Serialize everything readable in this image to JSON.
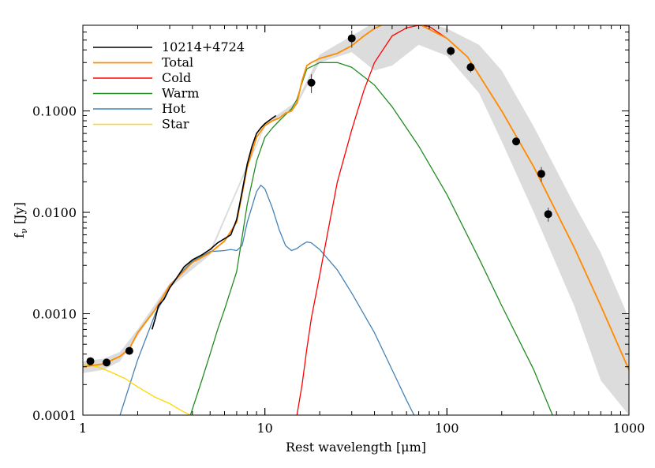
{
  "chart_data": {
    "type": "line",
    "title": "",
    "xlabel": "Rest wavelength [μm]",
    "ylabel_main": "f",
    "ylabel_sub": "ν",
    "ylabel_unit": " [Jy]",
    "xscale": "log",
    "yscale": "log",
    "xlim": [
      1,
      1000
    ],
    "ylim": [
      0.0001,
      0.7
    ],
    "grid": false,
    "legend_position": "top-left",
    "x_ticks": [
      {
        "value": 1,
        "label": "1"
      },
      {
        "value": 10,
        "label": "10"
      },
      {
        "value": 100,
        "label": "100"
      },
      {
        "value": 1000,
        "label": "1000"
      }
    ],
    "y_ticks": [
      {
        "value": 0.0001,
        "label": "0.0001"
      },
      {
        "value": 0.001,
        "label": "0.0010"
      },
      {
        "value": 0.01,
        "label": "0.0100"
      },
      {
        "value": 0.1,
        "label": "0.1000"
      }
    ],
    "series": [
      {
        "name": "10214+4724",
        "color": "#000000",
        "points": [
          [
            2.4,
            0.0007
          ],
          [
            2.5,
            0.0009
          ],
          [
            2.6,
            0.0012
          ],
          [
            2.8,
            0.0014
          ],
          [
            3.0,
            0.0018
          ],
          [
            3.3,
            0.0023
          ],
          [
            3.6,
            0.0029
          ],
          [
            4.0,
            0.0034
          ],
          [
            4.5,
            0.0038
          ],
          [
            5.0,
            0.0043
          ],
          [
            5.5,
            0.005
          ],
          [
            6.0,
            0.0055
          ],
          [
            6.5,
            0.006
          ],
          [
            7.0,
            0.0085
          ],
          [
            7.5,
            0.016
          ],
          [
            8.0,
            0.03
          ],
          [
            8.5,
            0.045
          ],
          [
            9.0,
            0.06
          ],
          [
            9.5,
            0.068
          ],
          [
            10.0,
            0.075
          ],
          [
            10.5,
            0.08
          ],
          [
            11.0,
            0.085
          ],
          [
            11.5,
            0.09
          ]
        ]
      },
      {
        "name": "Total",
        "color": "#ff8c00",
        "points": [
          [
            1.0,
            0.0003
          ],
          [
            1.3,
            0.00032
          ],
          [
            1.6,
            0.00038
          ],
          [
            1.8,
            0.00045
          ],
          [
            2.0,
            0.00065
          ],
          [
            2.5,
            0.0011
          ],
          [
            3.0,
            0.0019
          ],
          [
            4.0,
            0.0032
          ],
          [
            5.0,
            0.004
          ],
          [
            6.0,
            0.0052
          ],
          [
            7.0,
            0.008
          ],
          [
            8.0,
            0.028
          ],
          [
            9.0,
            0.055
          ],
          [
            10.0,
            0.072
          ],
          [
            11.0,
            0.08
          ],
          [
            12.0,
            0.085
          ],
          [
            13.0,
            0.095
          ],
          [
            14.0,
            0.1
          ],
          [
            15.0,
            0.12
          ],
          [
            16.0,
            0.2
          ],
          [
            17.0,
            0.28
          ],
          [
            18.0,
            0.3
          ],
          [
            20.0,
            0.33
          ],
          [
            25.0,
            0.37
          ],
          [
            30.0,
            0.44
          ],
          [
            35.0,
            0.55
          ],
          [
            40.0,
            0.65
          ],
          [
            45.0,
            0.72
          ],
          [
            50.0,
            0.74
          ],
          [
            70.0,
            0.72
          ],
          [
            100.0,
            0.52
          ],
          [
            130.0,
            0.34
          ],
          [
            200.0,
            0.1
          ],
          [
            300.0,
            0.028
          ],
          [
            500.0,
            0.0045
          ],
          [
            700.0,
            0.0012
          ],
          [
            1000.0,
            0.00028
          ]
        ]
      },
      {
        "name": "Cold",
        "color": "#ff0000",
        "points": [
          [
            15.0,
            0.0001
          ],
          [
            16.0,
            0.0002
          ],
          [
            17.0,
            0.00045
          ],
          [
            18.0,
            0.0009
          ],
          [
            20.0,
            0.0024
          ],
          [
            22.0,
            0.006
          ],
          [
            25.0,
            0.02
          ],
          [
            30.0,
            0.065
          ],
          [
            35.0,
            0.16
          ],
          [
            40.0,
            0.3
          ],
          [
            50.0,
            0.55
          ],
          [
            60.0,
            0.66
          ],
          [
            70.0,
            0.7
          ],
          [
            80.0,
            0.68
          ],
          [
            100.0,
            0.52
          ],
          [
            130.0,
            0.34
          ],
          [
            200.0,
            0.1
          ],
          [
            300.0,
            0.028
          ],
          [
            500.0,
            0.0045
          ],
          [
            700.0,
            0.0012
          ],
          [
            1000.0,
            0.00028
          ]
        ]
      },
      {
        "name": "Warm",
        "color": "#228b22",
        "points": [
          [
            3.9,
            0.0001
          ],
          [
            4.5,
            0.00022
          ],
          [
            5.0,
            0.0004
          ],
          [
            5.5,
            0.0007
          ],
          [
            6.0,
            0.0011
          ],
          [
            7.0,
            0.0026
          ],
          [
            8.0,
            0.012
          ],
          [
            9.0,
            0.032
          ],
          [
            10.0,
            0.055
          ],
          [
            11.0,
            0.068
          ],
          [
            12.0,
            0.08
          ],
          [
            13.0,
            0.092
          ],
          [
            14.0,
            0.105
          ],
          [
            15.0,
            0.13
          ],
          [
            16.0,
            0.19
          ],
          [
            17.0,
            0.26
          ],
          [
            20.0,
            0.3
          ],
          [
            25.0,
            0.3
          ],
          [
            30.0,
            0.27
          ],
          [
            40.0,
            0.18
          ],
          [
            50.0,
            0.11
          ],
          [
            70.0,
            0.045
          ],
          [
            100.0,
            0.015
          ],
          [
            150.0,
            0.0035
          ],
          [
            200.0,
            0.0012
          ],
          [
            300.0,
            0.00028
          ],
          [
            380.0,
            0.0001
          ]
        ]
      },
      {
        "name": "Hot",
        "color": "#4682b4",
        "points": [
          [
            1.6,
            0.0001
          ],
          [
            2.0,
            0.00035
          ],
          [
            2.5,
            0.001
          ],
          [
            3.0,
            0.0018
          ],
          [
            3.5,
            0.0026
          ],
          [
            4.0,
            0.0033
          ],
          [
            5.0,
            0.0041
          ],
          [
            6.0,
            0.0042
          ],
          [
            6.5,
            0.0043
          ],
          [
            7.0,
            0.0042
          ],
          [
            7.5,
            0.0047
          ],
          [
            8.0,
            0.008
          ],
          [
            9.0,
            0.016
          ],
          [
            9.5,
            0.0185
          ],
          [
            10.0,
            0.017
          ],
          [
            11.0,
            0.011
          ],
          [
            12.0,
            0.0067
          ],
          [
            13.0,
            0.0047
          ],
          [
            14.0,
            0.0042
          ],
          [
            15.0,
            0.0044
          ],
          [
            16.0,
            0.0048
          ],
          [
            17.0,
            0.0051
          ],
          [
            18.0,
            0.005
          ],
          [
            20.0,
            0.0043
          ],
          [
            25.0,
            0.0027
          ],
          [
            30.0,
            0.0016
          ],
          [
            40.0,
            0.00065
          ],
          [
            50.0,
            0.00028
          ],
          [
            60.0,
            0.00014
          ],
          [
            66.0,
            0.0001
          ]
        ]
      },
      {
        "name": "Star",
        "color": "#ffd700",
        "points": [
          [
            1.0,
            0.00032
          ],
          [
            1.2,
            0.0003
          ],
          [
            1.4,
            0.00027
          ],
          [
            1.7,
            0.00023
          ],
          [
            2.0,
            0.00019
          ],
          [
            2.5,
            0.00015
          ],
          [
            3.0,
            0.00013
          ],
          [
            3.5,
            0.00011
          ],
          [
            3.9,
            0.0001
          ]
        ]
      }
    ],
    "photometry": {
      "name": "photometry",
      "color": "#000000",
      "points": [
        {
          "x": 1.1,
          "y": 0.00034,
          "err": 2e-05
        },
        {
          "x": 1.35,
          "y": 0.00033,
          "err": 2e-05
        },
        {
          "x": 1.8,
          "y": 0.00043,
          "err": 3e-05
        },
        {
          "x": 18.0,
          "y": 0.19,
          "err": 0.04
        },
        {
          "x": 30.0,
          "y": 0.52,
          "err": 0.1
        },
        {
          "x": 105.0,
          "y": 0.39,
          "err": 0.04
        },
        {
          "x": 135.0,
          "y": 0.27,
          "err": 0.03
        },
        {
          "x": 240.0,
          "y": 0.05,
          "err": 0.004
        },
        {
          "x": 330.0,
          "y": 0.024,
          "err": 0.004
        },
        {
          "x": 360.0,
          "y": 0.0096,
          "err": 0.0015
        }
      ]
    },
    "uncertainty_band": {
      "color": "#dcdcdc",
      "points": [
        {
          "x": 1.0,
          "lo": 0.00026,
          "hi": 0.00034
        },
        {
          "x": 1.3,
          "lo": 0.00028,
          "hi": 0.00036
        },
        {
          "x": 1.6,
          "lo": 0.00034,
          "hi": 0.00042
        },
        {
          "x": 2.0,
          "lo": 0.0006,
          "hi": 0.0007
        },
        {
          "x": 3.0,
          "lo": 0.0018,
          "hi": 0.002
        },
        {
          "x": 5.0,
          "lo": 0.0038,
          "hi": 0.0042
        },
        {
          "x": 10.0,
          "lo": 0.07,
          "hi": 0.075
        },
        {
          "x": 15.0,
          "lo": 0.115,
          "hi": 0.125
        },
        {
          "x": 20.0,
          "lo": 0.3,
          "hi": 0.36
        },
        {
          "x": 30.0,
          "lo": 0.38,
          "hi": 0.55
        },
        {
          "x": 40.0,
          "lo": 0.25,
          "hi": 0.75
        },
        {
          "x": 50.0,
          "lo": 0.28,
          "hi": 0.78
        },
        {
          "x": 70.0,
          "lo": 0.45,
          "hi": 0.78
        },
        {
          "x": 100.0,
          "lo": 0.35,
          "hi": 0.65
        },
        {
          "x": 150.0,
          "lo": 0.15,
          "hi": 0.45
        },
        {
          "x": 200.0,
          "lo": 0.05,
          "hi": 0.25
        },
        {
          "x": 300.0,
          "lo": 0.01,
          "hi": 0.07
        },
        {
          "x": 500.0,
          "lo": 0.0012,
          "hi": 0.012
        },
        {
          "x": 700.0,
          "lo": 0.00022,
          "hi": 0.004
        },
        {
          "x": 1000.0,
          "lo": 0.0001,
          "hi": 0.0009
        }
      ]
    }
  }
}
